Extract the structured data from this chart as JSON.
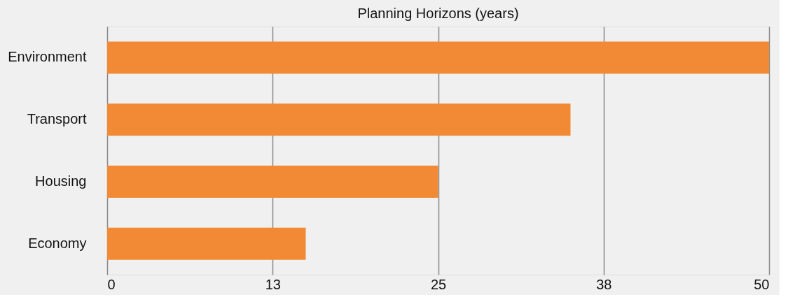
{
  "chart_data": {
    "type": "bar",
    "orientation": "horizontal",
    "title": "Planning Horizons (years)",
    "categories": [
      "Environment",
      "Transport",
      "Housing",
      "Economy"
    ],
    "values": [
      50,
      35,
      25,
      15
    ],
    "color": "#f28a35",
    "xlim": [
      0,
      50
    ],
    "xticks": [
      0,
      {
        "value": 12.5,
        "label": "13"
      },
      25,
      {
        "value": 37.5,
        "label": "38"
      },
      50
    ],
    "grid": "x"
  }
}
